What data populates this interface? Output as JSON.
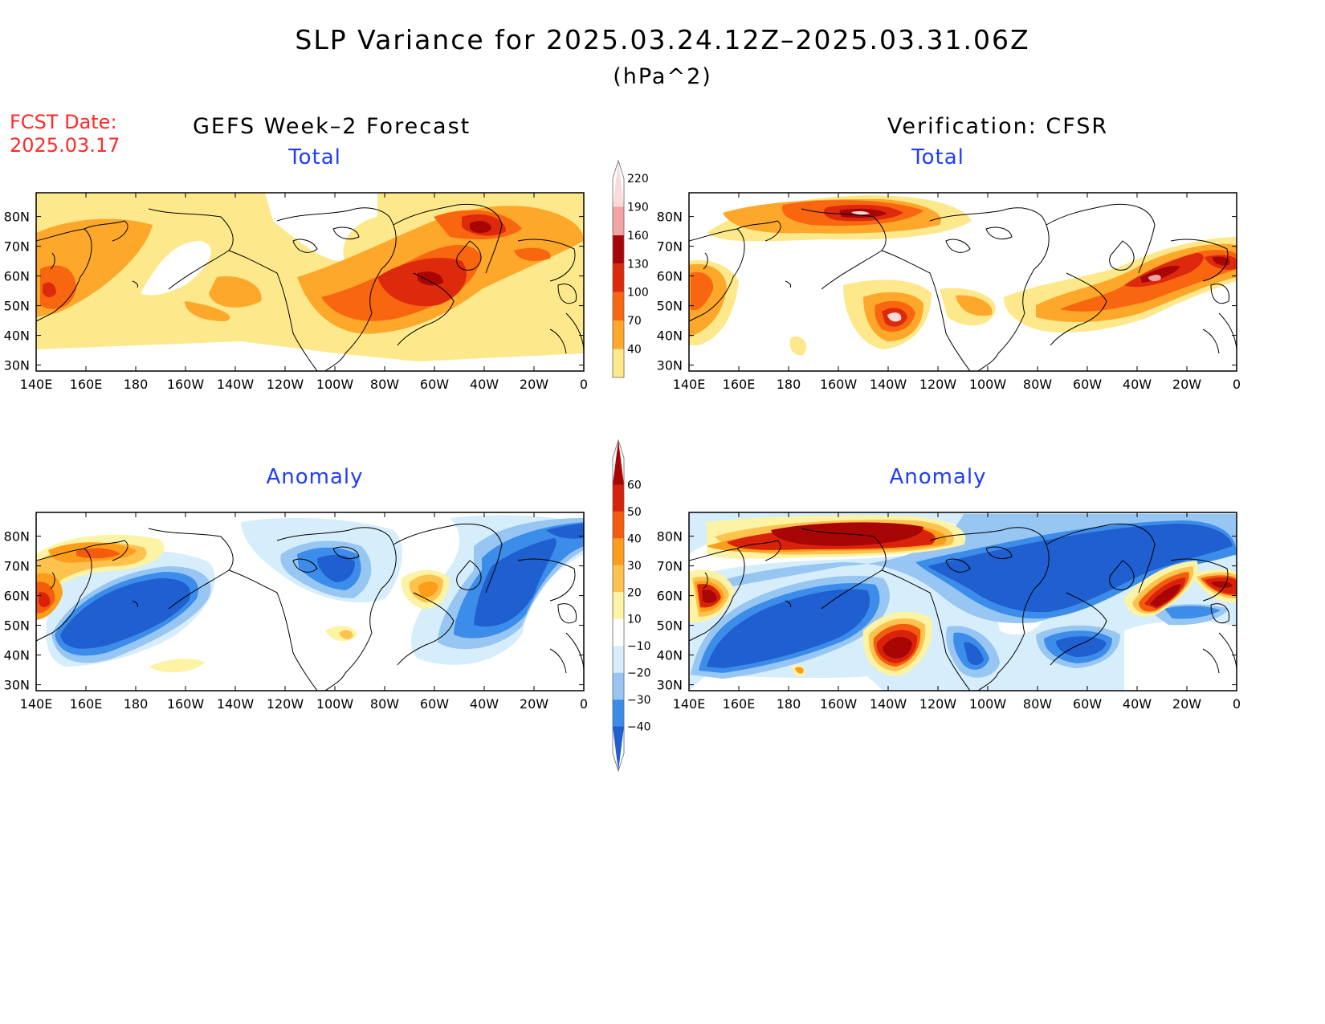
{
  "title": "SLP Variance for 2025.03.24.12Z–2025.03.31.06Z",
  "units": "(hPa^2)",
  "fcst_label": "FCST Date:",
  "fcst_date": "2025.03.17",
  "columns": {
    "left": "GEFS Week–2 Forecast",
    "right": "Verification: CFSR"
  },
  "panel_titles": {
    "total": "Total",
    "anomaly": "Anomaly"
  },
  "lon_ticks": [
    "140E",
    "160E",
    "180",
    "160W",
    "140W",
    "120W",
    "100W",
    "80W",
    "60W",
    "40W",
    "20W",
    "0"
  ],
  "lat_ticks": [
    "80N",
    "70N",
    "60N",
    "50N",
    "40N",
    "30N"
  ],
  "colorbar_total": {
    "levels": [
      "40",
      "70",
      "100",
      "130",
      "160",
      "190",
      "220"
    ],
    "colors": [
      "#fde98b",
      "#fda72b",
      "#f8660f",
      "#dd2a0c",
      "#a80606",
      "#f2a4a4",
      "#fbdada"
    ]
  },
  "colorbar_anomaly": {
    "levels": [
      "−40",
      "−30",
      "−20",
      "−10",
      "10",
      "20",
      "30",
      "40",
      "50",
      "60"
    ],
    "colors": [
      "#1f5fd0",
      "#3c8cea",
      "#97c6f3",
      "#d6edfb",
      "#ffffff",
      "#fdf3a5",
      "#fdc34e",
      "#fd9d1a",
      "#f55b0d",
      "#d8220b",
      "#a80505"
    ]
  }
}
